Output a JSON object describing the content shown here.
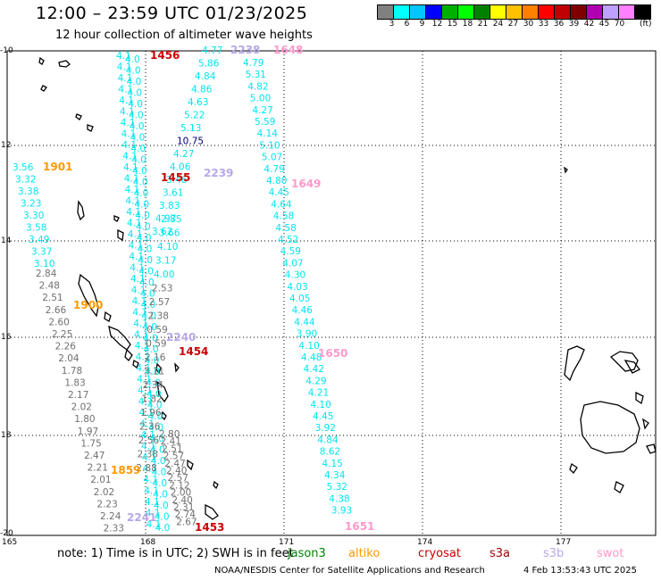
{
  "title": "12:00 – 23:59 UTC 01/23/2025",
  "subtitle": "12 hour collection of altimeter wave heights",
  "scale": {
    "colors": [
      "#808080",
      "#00ffff",
      "#00c8ff",
      "#0000ff",
      "#00b000",
      "#00ff00",
      "#008000",
      "#ffff00",
      "#ffc000",
      "#ff8000",
      "#ff0000",
      "#c00000",
      "#800000",
      "#b000b0",
      "#c0a0ff",
      "#ff80ff",
      "#000000"
    ],
    "labels": [
      "3",
      "6",
      "9",
      "12",
      "15",
      "18",
      "21",
      "24",
      "27",
      "30",
      "33",
      "36",
      "39",
      "42",
      "45",
      "70"
    ],
    "unit": "(ft)"
  },
  "axes": {
    "lat_labels": [
      "-10",
      "12",
      "14",
      "16",
      "18",
      "-20"
    ],
    "lon_labels": [
      "165",
      "168",
      "171",
      "174",
      "177"
    ]
  },
  "note": "note:  1) Time is in UTC;  2) SWH is in feet",
  "legend": [
    {
      "name": "jason3",
      "color": "#008000"
    },
    {
      "name": "altiko",
      "color": "#ff9900"
    },
    {
      "name": "cryosat",
      "color": "#cc0000"
    },
    {
      "name": "s3a",
      "color": "#990000"
    },
    {
      "name": "s3b",
      "color": "#b8a8e8"
    },
    {
      "name": "swot",
      "color": "#ff99cc"
    }
  ],
  "credit": "NOAA/NESDIS Center for Satellite Applications and Research",
  "timestamp": "4 Feb 13:53:43 UTC 2025",
  "pass_labels": [
    {
      "text": "1456",
      "color": "#cc0000"
    },
    {
      "text": "2238",
      "color": "#b8a8e8"
    },
    {
      "text": "1648",
      "color": "#ff99cc"
    },
    {
      "text": "1901",
      "color": "#ff9900"
    },
    {
      "text": "1455",
      "color": "#cc0000"
    },
    {
      "text": "2239",
      "color": "#b8a8e8"
    },
    {
      "text": "1649",
      "color": "#ff99cc"
    },
    {
      "text": "1900",
      "color": "#ff9900"
    },
    {
      "text": "2240",
      "color": "#b8a8e8"
    },
    {
      "text": "1454",
      "color": "#cc0000"
    },
    {
      "text": "1650",
      "color": "#ff99cc"
    },
    {
      "text": "1859",
      "color": "#ff9900"
    },
    {
      "text": "2241",
      "color": "#b8a8e8"
    },
    {
      "text": "1453",
      "color": "#cc0000"
    },
    {
      "text": "1651",
      "color": "#ff99cc"
    }
  ],
  "track_right": [
    "4.77",
    "5.86",
    "4.84",
    "4.86",
    "4.63",
    "5.22",
    "5.13",
    "10.75",
    "4.27",
    "4.06",
    "3.46",
    "3.61",
    "3.83",
    "4.97",
    "3.62"
  ],
  "track_far_right": [
    "4.79",
    "5.31",
    "4.82",
    "5.00",
    "4.27",
    "5.59",
    "4.14",
    "5.10",
    "5.07",
    "4.79",
    "4.80",
    "4.45",
    "4.64",
    "4.58",
    "4.58",
    "4.52",
    "4.59",
    "4.07",
    "4.30",
    "4.03",
    "4.05",
    "4.46",
    "4.44",
    "3.90",
    "4.10",
    "4.48",
    "4.42",
    "4.29",
    "4.21",
    "4.10",
    "4.45",
    "3.92",
    "4.84",
    "8.62",
    "4.15",
    "4.34",
    "5.32",
    "4.38",
    "3.93"
  ],
  "track_left_cyan": [
    "3.56",
    "3.32",
    "3.38",
    "3.23",
    "3.30",
    "3.58",
    "3.49",
    "3.37",
    "3.10"
  ],
  "track_left_gray": [
    "2.84",
    "2.48",
    "2.51",
    "2.66",
    "2.60",
    "2.25",
    "2.26",
    "2.04",
    "1.78",
    "1.83",
    "2.17",
    "2.02",
    "1.80",
    "1.97",
    "1.75",
    "2.47",
    "2.21",
    "2.01",
    "2.02",
    "2.23",
    "2.24",
    "2.33"
  ],
  "track_mid_gray": [
    "2.85",
    "3.66",
    "4.10",
    "3.17",
    "4.00",
    "2.53",
    "2.57",
    "2.38",
    "0.59",
    "0.59",
    "2.16",
    "3.11",
    "2.34",
    "1.82",
    "1.96",
    "2.36",
    "2.56",
    "2.38",
    "2.88"
  ],
  "track_center_gray": [
    "2.80",
    "2.41",
    "2.51",
    "2.57",
    "2.47",
    "2.40",
    "2.57",
    "2.12",
    "2.00",
    "2.40",
    "2.31",
    "2.74",
    "2.67"
  ]
}
